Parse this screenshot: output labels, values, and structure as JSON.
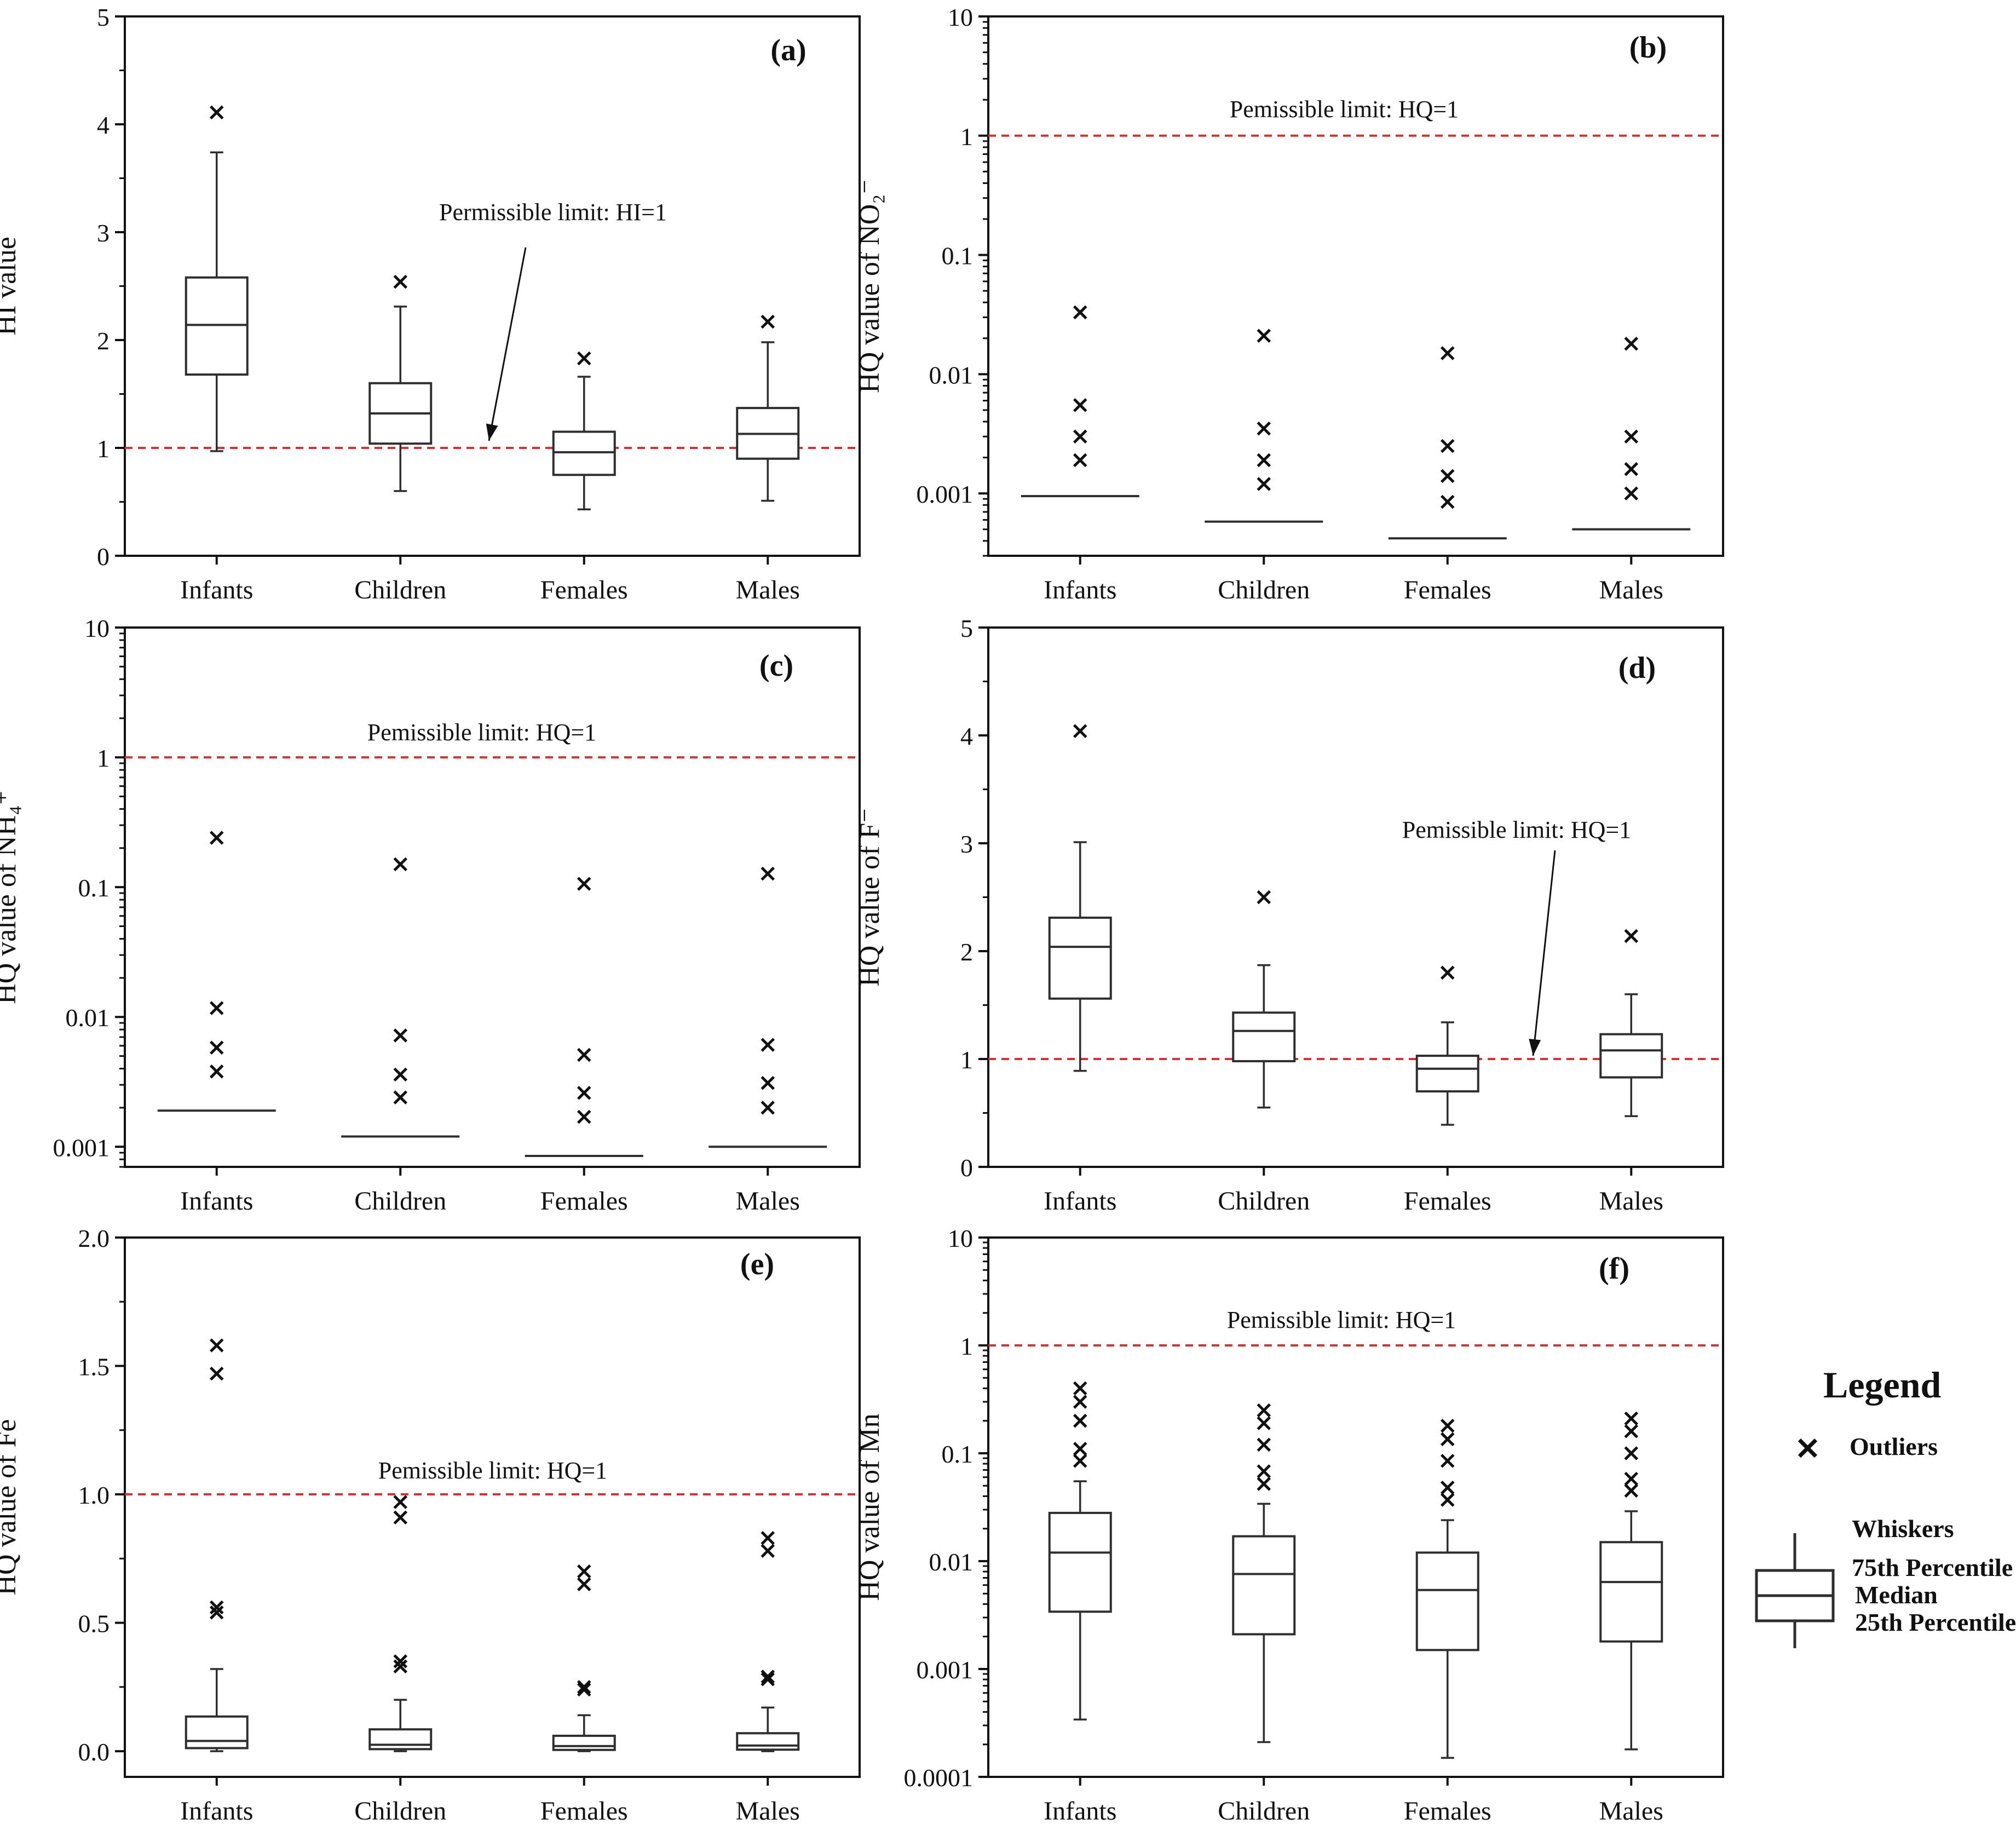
{
  "colors": {
    "axis": "#111111",
    "limit_line": "#d93030",
    "box_stroke": "#2e2e2e"
  },
  "categories": [
    "Infants",
    "Children",
    "Females",
    "Males"
  ],
  "chart_data": [
    {
      "id": "a",
      "type": "box",
      "scale": "linear",
      "title": "(a)",
      "ylabel": "HI value",
      "xlabel": "",
      "ylim": [
        0,
        5
      ],
      "yticks": [
        0,
        1,
        2,
        3,
        4,
        5
      ],
      "ytick_labels": [
        "0",
        "1",
        "2",
        "3",
        "4",
        "5"
      ],
      "limit": {
        "value": 1,
        "label": "Permissible limit: HI=1",
        "has_arrow": true
      },
      "boxes": [
        {
          "category": "Infants",
          "q1": 1.68,
          "median": 2.14,
          "q3": 2.58,
          "whisker_low": 0.97,
          "whisker_high": 3.74,
          "outliers": [
            4.11
          ]
        },
        {
          "category": "Children",
          "q1": 1.04,
          "median": 1.32,
          "q3": 1.6,
          "whisker_low": 0.6,
          "whisker_high": 2.31,
          "outliers": [
            2.54
          ]
        },
        {
          "category": "Females",
          "q1": 0.75,
          "median": 0.96,
          "q3": 1.15,
          "whisker_low": 0.43,
          "whisker_high": 1.66,
          "outliers": [
            1.83
          ]
        },
        {
          "category": "Males",
          "q1": 0.9,
          "median": 1.13,
          "q3": 1.37,
          "whisker_low": 0.51,
          "whisker_high": 1.98,
          "outliers": [
            2.17
          ]
        }
      ]
    },
    {
      "id": "b",
      "type": "box",
      "scale": "log",
      "title": "(b)",
      "ylabel": "HQ value of NO₂⁻",
      "xlabel": "",
      "ylim": [
        0.0003,
        10
      ],
      "yticks": [
        0.001,
        0.01,
        0.1,
        1,
        10
      ],
      "ytick_labels": [
        "0.001",
        "0.01",
        "0.1",
        "1",
        "10"
      ],
      "limit": {
        "value": 1,
        "label": "Pemissible limit: HQ=1",
        "has_arrow": false
      },
      "boxes": [
        {
          "category": "Infants",
          "q1": 0.00095,
          "median": 0.00095,
          "q3": 0.00095,
          "whisker_low": 0.00095,
          "whisker_high": 0.00095,
          "outliers": [
            0.0019,
            0.003,
            0.0055,
            0.033
          ]
        },
        {
          "category": "Children",
          "q1": 0.00058,
          "median": 0.00058,
          "q3": 0.00058,
          "whisker_low": 0.00058,
          "whisker_high": 0.00058,
          "outliers": [
            0.0012,
            0.0019,
            0.0035,
            0.021
          ]
        },
        {
          "category": "Females",
          "q1": 0.00042,
          "median": 0.00042,
          "q3": 0.00042,
          "whisker_low": 0.00042,
          "whisker_high": 0.00042,
          "outliers": [
            0.00085,
            0.0014,
            0.0025,
            0.015
          ]
        },
        {
          "category": "Males",
          "q1": 0.0005,
          "median": 0.0005,
          "q3": 0.0005,
          "whisker_low": 0.0005,
          "whisker_high": 0.0005,
          "outliers": [
            0.001,
            0.0016,
            0.003,
            0.018
          ]
        }
      ]
    },
    {
      "id": "c",
      "type": "box",
      "scale": "log",
      "title": "(c)",
      "ylabel": "HQ value of NH₄⁺",
      "xlabel": "",
      "ylim": [
        0.0007,
        10
      ],
      "yticks": [
        0.001,
        0.01,
        0.1,
        1,
        10
      ],
      "ytick_labels": [
        "0.001",
        "0.01",
        "0.1",
        "1",
        "10"
      ],
      "limit": {
        "value": 1,
        "label": "Pemissible limit: HQ=1",
        "has_arrow": false
      },
      "boxes": [
        {
          "category": "Infants",
          "q1": 0.0019,
          "median": 0.0019,
          "q3": 0.0019,
          "whisker_low": 0.0019,
          "whisker_high": 0.0019,
          "outliers": [
            0.0038,
            0.0058,
            0.0117,
            0.24
          ]
        },
        {
          "category": "Children",
          "q1": 0.0012,
          "median": 0.0012,
          "q3": 0.0012,
          "whisker_low": 0.0012,
          "whisker_high": 0.0012,
          "outliers": [
            0.0024,
            0.0036,
            0.0072,
            0.15
          ]
        },
        {
          "category": "Females",
          "q1": 0.00085,
          "median": 0.00085,
          "q3": 0.00085,
          "whisker_low": 0.00085,
          "whisker_high": 0.00085,
          "outliers": [
            0.0017,
            0.0026,
            0.0051,
            0.106
          ]
        },
        {
          "category": "Males",
          "q1": 0.001,
          "median": 0.001,
          "q3": 0.001,
          "whisker_low": 0.001,
          "whisker_high": 0.001,
          "outliers": [
            0.002,
            0.0031,
            0.0061,
            0.127
          ]
        }
      ]
    },
    {
      "id": "d",
      "type": "box",
      "scale": "linear",
      "title": "(d)",
      "ylabel": "HQ value of F⁻",
      "xlabel": "",
      "ylim": [
        0,
        5
      ],
      "yticks": [
        0,
        1,
        2,
        3,
        4,
        5
      ],
      "ytick_labels": [
        "0",
        "1",
        "2",
        "3",
        "4",
        "5"
      ],
      "limit": {
        "value": 1,
        "label": "Pemissible limit: HQ=1",
        "has_arrow": true
      },
      "boxes": [
        {
          "category": "Infants",
          "q1": 1.56,
          "median": 2.04,
          "q3": 2.31,
          "whisker_low": 0.89,
          "whisker_high": 3.01,
          "outliers": [
            4.04
          ]
        },
        {
          "category": "Children",
          "q1": 0.98,
          "median": 1.26,
          "q3": 1.43,
          "whisker_low": 0.55,
          "whisker_high": 1.87,
          "outliers": [
            2.5
          ]
        },
        {
          "category": "Females",
          "q1": 0.7,
          "median": 0.91,
          "q3": 1.03,
          "whisker_low": 0.39,
          "whisker_high": 1.34,
          "outliers": [
            1.8
          ]
        },
        {
          "category": "Males",
          "q1": 0.83,
          "median": 1.08,
          "q3": 1.23,
          "whisker_low": 0.47,
          "whisker_high": 1.6,
          "outliers": [
            2.14
          ]
        }
      ]
    },
    {
      "id": "e",
      "type": "box",
      "scale": "linear",
      "title": "(e)",
      "ylabel": "HQ value of Fe",
      "xlabel": "",
      "ylim": [
        -0.1,
        2.0
      ],
      "yticks": [
        0,
        0.5,
        1.0,
        1.5,
        2.0
      ],
      "ytick_labels": [
        "0.0",
        "0.5",
        "1.0",
        "1.5",
        "2.0"
      ],
      "limit": {
        "value": 1,
        "label": "Pemissible limit: HQ=1",
        "has_arrow": false
      },
      "boxes": [
        {
          "category": "Infants",
          "q1": 0.012,
          "median": 0.04,
          "q3": 0.135,
          "whisker_low": 0.0,
          "whisker_high": 0.32,
          "outliers": [
            0.54,
            0.56,
            1.47,
            1.58
          ]
        },
        {
          "category": "Children",
          "q1": 0.008,
          "median": 0.025,
          "q3": 0.085,
          "whisker_low": 0.0,
          "whisker_high": 0.2,
          "outliers": [
            0.33,
            0.35,
            0.91,
            0.97
          ]
        },
        {
          "category": "Females",
          "q1": 0.005,
          "median": 0.02,
          "q3": 0.06,
          "whisker_low": 0.0,
          "whisker_high": 0.14,
          "outliers": [
            0.24,
            0.25,
            0.65,
            0.7
          ]
        },
        {
          "category": "Males",
          "q1": 0.006,
          "median": 0.022,
          "q3": 0.07,
          "whisker_low": 0.0,
          "whisker_high": 0.17,
          "outliers": [
            0.28,
            0.29,
            0.78,
            0.83
          ]
        }
      ]
    },
    {
      "id": "f",
      "type": "box",
      "scale": "log",
      "title": "(f)",
      "ylabel": "HQ value of Mn",
      "xlabel": "",
      "ylim": [
        0.0001,
        10
      ],
      "yticks": [
        0.0001,
        0.001,
        0.01,
        0.1,
        1,
        10
      ],
      "ytick_labels": [
        "0.0001",
        "0.001",
        "0.01",
        "0.1",
        "1",
        "10"
      ],
      "limit": {
        "value": 1,
        "label": "Pemissible limit: HQ=1",
        "has_arrow": false
      },
      "boxes": [
        {
          "category": "Infants",
          "q1": 0.0034,
          "median": 0.012,
          "q3": 0.028,
          "whisker_low": 0.00034,
          "whisker_high": 0.055,
          "outliers": [
            0.085,
            0.11,
            0.2,
            0.3,
            0.4
          ]
        },
        {
          "category": "Children",
          "q1": 0.0021,
          "median": 0.0076,
          "q3": 0.017,
          "whisker_low": 0.00021,
          "whisker_high": 0.034,
          "outliers": [
            0.052,
            0.068,
            0.12,
            0.19,
            0.25
          ]
        },
        {
          "category": "Females",
          "q1": 0.0015,
          "median": 0.0054,
          "q3": 0.012,
          "whisker_low": 0.00015,
          "whisker_high": 0.024,
          "outliers": [
            0.037,
            0.048,
            0.085,
            0.135,
            0.18
          ]
        },
        {
          "category": "Males",
          "q1": 0.0018,
          "median": 0.0064,
          "q3": 0.015,
          "whisker_low": 0.00018,
          "whisker_high": 0.029,
          "outliers": [
            0.045,
            0.058,
            0.1,
            0.16,
            0.21
          ]
        }
      ]
    }
  ],
  "legend": {
    "title": "Legend",
    "outliers_label": "Outliers",
    "whiskers_label": "Whiskers",
    "p75_label": "75th Percentile",
    "median_label": "Median",
    "p25_label": "25th Percentile"
  }
}
